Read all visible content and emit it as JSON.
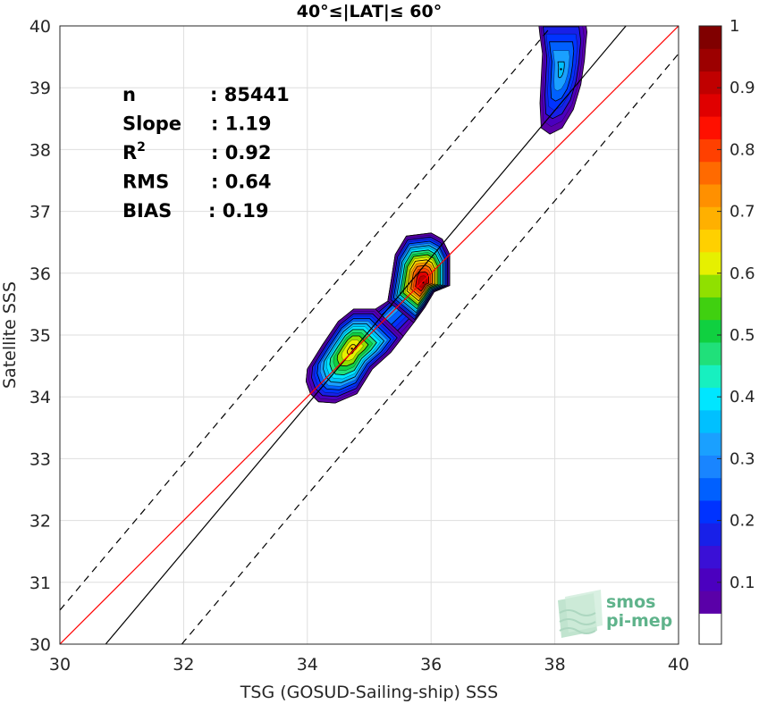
{
  "chart_data": {
    "type": "heatmap",
    "subtype": "density contour scatter",
    "title": "40°≤|LAT|≤ 60°",
    "xlabel": "TSG (GOSUD-Sailing-ship) SSS",
    "ylabel": "Satellite SSS",
    "xlim": [
      30,
      40
    ],
    "ylim": [
      30,
      40
    ],
    "xticks": [
      "30",
      "32",
      "34",
      "36",
      "38",
      "40"
    ],
    "yticks": [
      "30",
      "31",
      "32",
      "33",
      "34",
      "35",
      "36",
      "37",
      "38",
      "39",
      "40"
    ],
    "grid": true,
    "stats": [
      {
        "label": "n",
        "value": ": 85441"
      },
      {
        "label": "Slope",
        "value": ": 1.19"
      },
      {
        "label": "R",
        "sup": "2",
        "value": ": 0.92"
      },
      {
        "label": "RMS",
        "value": ": 0.64"
      },
      {
        "label": "BIAS",
        "value": ": 0.19"
      }
    ],
    "lines": {
      "one_to_one": {
        "color": "#ff0000",
        "points": [
          [
            30,
            30
          ],
          [
            40,
            40
          ]
        ]
      },
      "regression": {
        "color": "#000000",
        "slope": 1.19,
        "points": [
          [
            30.74,
            30
          ],
          [
            39.15,
            40
          ]
        ]
      },
      "upper_dashed": {
        "color": "#000000",
        "points": [
          [
            30,
            30.55
          ],
          [
            37.95,
            40
          ]
        ]
      },
      "lower_dashed": {
        "color": "#000000",
        "points": [
          [
            31.97,
            30
          ],
          [
            40,
            39.55
          ]
        ]
      }
    },
    "density_peaks": [
      {
        "x": 34.72,
        "y": 34.78,
        "peak": 0.65
      },
      {
        "x": 35.87,
        "y": 35.85,
        "peak": 0.92
      },
      {
        "x": 38.1,
        "y": 39.3,
        "peak": 0.35
      }
    ],
    "colorbar": {
      "min": 0.05,
      "max": 1.0,
      "ticks": [
        "0.1",
        "0.2",
        "0.3",
        "0.4",
        "0.5",
        "0.6",
        "0.7",
        "0.8",
        "0.9",
        "1"
      ],
      "colors": [
        "#5a00a8",
        "#4b00bf",
        "#3a10d6",
        "#1820e8",
        "#0033ff",
        "#0060ff",
        "#1985ff",
        "#1aa0ff",
        "#00c0ff",
        "#00e6ff",
        "#17f0c0",
        "#20e07a",
        "#10d040",
        "#40d010",
        "#90e000",
        "#e6f000",
        "#ffd000",
        "#ffb000",
        "#ff9000",
        "#ff6a00",
        "#ff4000",
        "#ff1000",
        "#e00000",
        "#c00000",
        "#9c0000",
        "#800000"
      ]
    }
  },
  "logo": {
    "line1": "smos",
    "line2": "pi-mep"
  }
}
